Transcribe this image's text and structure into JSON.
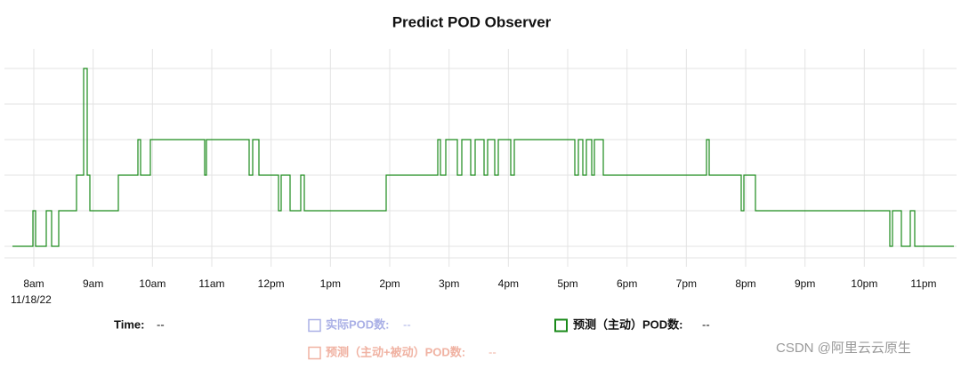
{
  "chart_data": {
    "type": "line",
    "step": "post",
    "title": "Predict POD Observer",
    "date_label": "11/18/22",
    "xlim": [
      7.655,
      23.51
    ],
    "xticks": [
      {
        "value": 8,
        "label": "8am"
      },
      {
        "value": 9,
        "label": "9am"
      },
      {
        "value": 10,
        "label": "10am"
      },
      {
        "value": 11,
        "label": "11am"
      },
      {
        "value": 12,
        "label": "12pm"
      },
      {
        "value": 13,
        "label": "1pm"
      },
      {
        "value": 14,
        "label": "2pm"
      },
      {
        "value": 15,
        "label": "3pm"
      },
      {
        "value": 16,
        "label": "4pm"
      },
      {
        "value": 17,
        "label": "5pm"
      },
      {
        "value": 18,
        "label": "6pm"
      },
      {
        "value": 19,
        "label": "7pm"
      },
      {
        "value": 20,
        "label": "8pm"
      },
      {
        "value": 21,
        "label": "9pm"
      },
      {
        "value": 22,
        "label": "10pm"
      },
      {
        "value": 23,
        "label": "11pm"
      }
    ],
    "ylim": [
      0.7,
      6.2
    ],
    "yticks": [
      1,
      2,
      3,
      4,
      5,
      6
    ],
    "grid": true,
    "series": [
      {
        "name": "预测（主动）POD数:",
        "color": "#1a8a1a",
        "readout": "--",
        "x": [
          7.64,
          7.985,
          8.03,
          8.21,
          8.3,
          8.42,
          8.72,
          8.84,
          8.9,
          8.945,
          9.425,
          9.755,
          9.8,
          9.965,
          10.88,
          10.91,
          11.63,
          11.69,
          11.795,
          12.125,
          12.17,
          12.32,
          12.5,
          12.56,
          13.94,
          14.81,
          14.855,
          14.945,
          15.14,
          15.215,
          15.365,
          15.44,
          15.59,
          15.65,
          15.77,
          15.83,
          16.04,
          16.1,
          17.12,
          17.18,
          17.255,
          17.315,
          17.405,
          17.45,
          17.6,
          19.34,
          19.385,
          19.925,
          19.97,
          20.165,
          22.43,
          22.475,
          22.625,
          22.775,
          22.85,
          23.51
        ],
        "values": [
          1,
          2,
          1,
          2,
          1,
          2,
          3,
          6,
          3,
          2,
          3,
          4,
          3,
          4,
          3,
          4,
          3,
          4,
          3,
          2,
          3,
          2,
          3,
          2,
          3,
          4,
          3,
          4,
          3,
          4,
          3,
          4,
          3,
          4,
          3,
          4,
          3,
          4,
          3,
          4,
          3,
          4,
          3,
          4,
          3,
          4,
          3,
          2,
          3,
          2,
          1,
          2,
          1,
          2,
          1,
          1
        ]
      }
    ],
    "time_readout": {
      "label": "Time:",
      "value": "--"
    },
    "inactive_series": [
      {
        "name": "实际POD数:",
        "color": "#aab0e6",
        "readout": "--"
      },
      {
        "name": "预测（主动+被动）POD数:",
        "color": "#f0b2a2",
        "readout": "--"
      }
    ]
  },
  "watermark": "CSDN @阿里云云原生"
}
